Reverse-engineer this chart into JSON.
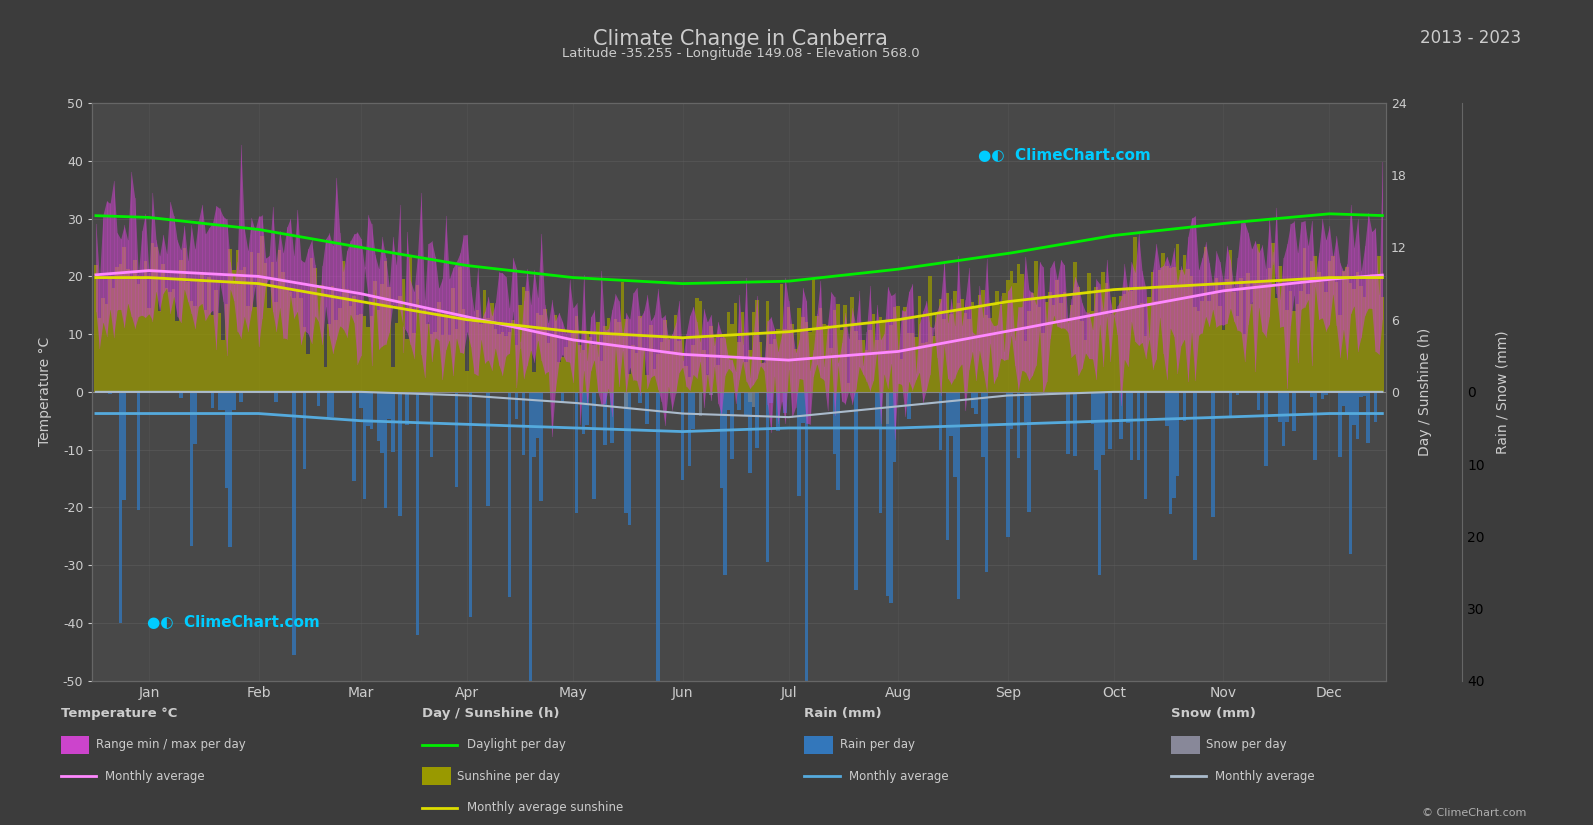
{
  "title": "Climate Change in Canberra",
  "subtitle": "Latitude -35.255 - Longitude 149.08 - Elevation 568.0",
  "year_range": "2013 - 2023",
  "bg_color": "#3c3c3c",
  "plot_bg_color": "#484848",
  "grid_color": "#606060",
  "text_color": "#cccccc",
  "temp_ylim": [
    -50,
    50
  ],
  "months": [
    "Jan",
    "Feb",
    "Mar",
    "Apr",
    "May",
    "Jun",
    "Jul",
    "Aug",
    "Sep",
    "Oct",
    "Nov",
    "Dec"
  ],
  "month_day_start": [
    0,
    31,
    59,
    90,
    120,
    151,
    181,
    212,
    243,
    273,
    304,
    334
  ],
  "month_centers": [
    15,
    46,
    75,
    105,
    135,
    166,
    196,
    227,
    258,
    288,
    319,
    349
  ],
  "temp_max_monthly": [
    28.5,
    27.5,
    24.0,
    19.5,
    14.5,
    11.5,
    10.5,
    12.5,
    16.5,
    20.5,
    24.0,
    27.0
  ],
  "temp_min_monthly": [
    13.5,
    13.0,
    10.5,
    6.5,
    3.0,
    0.5,
    -0.5,
    1.0,
    4.0,
    7.5,
    10.0,
    12.5
  ],
  "temp_avg_monthly": [
    21.0,
    20.0,
    17.0,
    13.0,
    9.0,
    6.5,
    5.5,
    7.0,
    10.5,
    14.0,
    17.5,
    19.5
  ],
  "daylight_monthly": [
    14.5,
    13.5,
    12.0,
    10.5,
    9.5,
    9.0,
    9.2,
    10.2,
    11.5,
    13.0,
    14.0,
    14.8
  ],
  "sunshine_monthly": [
    9.5,
    9.0,
    7.5,
    6.0,
    5.0,
    4.5,
    5.0,
    6.0,
    7.5,
    8.5,
    9.0,
    9.5
  ],
  "rain_monthly_mm": [
    3.0,
    3.0,
    4.0,
    4.5,
    5.0,
    5.5,
    5.0,
    5.0,
    4.5,
    4.0,
    3.5,
    3.0
  ],
  "snow_monthly_mm": [
    0.0,
    0.0,
    0.0,
    0.5,
    1.5,
    3.0,
    3.5,
    2.0,
    0.5,
    0.0,
    0.0,
    0.0
  ],
  "daylight_color": "#00ee00",
  "sunshine_bar_color": "#999900",
  "sunshine_line_color": "#dddd00",
  "temp_bar_color_pos": "#cc44cc",
  "temp_bar_color_neg": "#6622aa",
  "temp_avg_line_color": "#ff88ff",
  "rain_bar_color": "#3377bb",
  "rain_line_color": "#55aadd",
  "snow_bar_color": "#778899",
  "snow_line_color": "#aabbcc"
}
